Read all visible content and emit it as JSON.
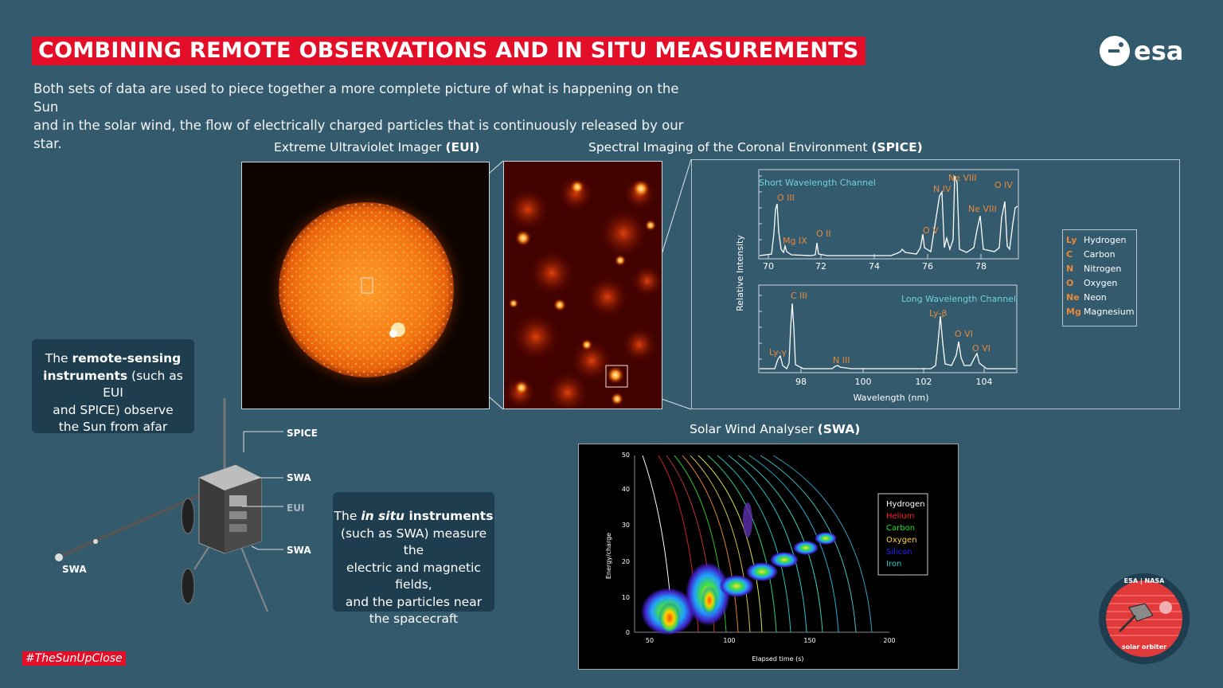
{
  "title": "COMBINING REMOTE OBSERVATIONS AND IN SITU MEASUREMENTS",
  "intro_line1": "Both sets of data are used to piece together a more complete picture of what is happening on the Sun",
  "intro_line2": "and in the solar wind, the flow of electrically charged particles that is continuously released by our star.",
  "logo": {
    "text": "esa"
  },
  "eui": {
    "title_plain": "Extreme Ultraviolet Imager ",
    "title_bold": "(EUI)"
  },
  "spice": {
    "title_plain": "Spectral Imaging of the Coronal Environment ",
    "title_bold": "(SPICE)",
    "y_label": "Relative Intensity",
    "x_label": "Wavelength (nm)",
    "short": {
      "channel": "Short Wavelength Channel",
      "ticks": [
        "70",
        "72",
        "74",
        "76",
        "78"
      ],
      "lines": [
        "O III",
        "Mg IX",
        "O II",
        "O V",
        "N IV",
        "Ne VIII",
        "Ne VIII",
        "O IV"
      ]
    },
    "long": {
      "channel": "Long Wavelength Channel",
      "ticks": [
        "98",
        "100",
        "102",
        "104"
      ],
      "lines": [
        "Ly-γ",
        "C III",
        "N III",
        "Ly-β",
        "O VI",
        "O VI"
      ]
    }
  },
  "element_legend": [
    {
      "symbol": "Ly",
      "name": "Hydrogen"
    },
    {
      "symbol": "C",
      "name": "Carbon"
    },
    {
      "symbol": "N",
      "name": "Nitrogen"
    },
    {
      "symbol": "O",
      "name": "Oxygen"
    },
    {
      "symbol": "Ne",
      "name": "Neon"
    },
    {
      "symbol": "Mg",
      "name": "Magnesium"
    }
  ],
  "swa": {
    "title_plain": "Solar Wind Analyser ",
    "title_bold": "(SWA)",
    "y_label": "Energy/charge",
    "x_label": "Elapsed time (s)",
    "y_ticks": [
      "0",
      "10",
      "20",
      "30",
      "40",
      "50"
    ],
    "x_ticks": [
      "50",
      "100",
      "150",
      "200"
    ],
    "legend": [
      {
        "name": "Hydrogen",
        "color": "#ffffff"
      },
      {
        "name": "Helium",
        "color": "#ff2020"
      },
      {
        "name": "Carbon",
        "color": "#20e020"
      },
      {
        "name": "Oxygen",
        "color": "#ffd040"
      },
      {
        "name": "Silicon",
        "color": "#2020ff"
      },
      {
        "name": "Iron",
        "color": "#20d0d0"
      }
    ]
  },
  "remote_callout": {
    "l1a": "The ",
    "l1b": "remote-sensing",
    "l2a": "instruments",
    "l2b": " (such as EUI",
    "l3": "and SPICE) observe",
    "l4": "the Sun from afar"
  },
  "insitu_callout": {
    "l1a": "The ",
    "l1b": "in situ",
    "l1c": " instruments",
    "l2": "(such as SWA) measure the",
    "l3": "electric and magnetic fields,",
    "l4": "and the particles near",
    "l5": "the spacecraft"
  },
  "spacecraft_labels": {
    "spice": "SPICE",
    "swa1": "SWA",
    "eui": "EUI",
    "swa2": "SWA",
    "swa3": "SWA"
  },
  "hashtag": "#TheSunUpClose",
  "badge": {
    "top": "ESA | NASA",
    "bottom": "solar orbiter"
  },
  "colors": {
    "background": "#345a6e",
    "accent_red": "#e30f28",
    "callout": "#1e3e4f",
    "label_orange": "#e8893a",
    "channel_cyan": "#6fd3df"
  }
}
